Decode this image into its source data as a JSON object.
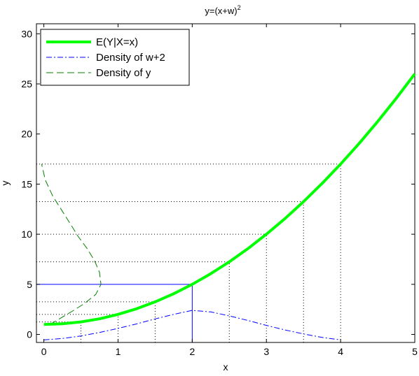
{
  "chart_data": {
    "type": "line",
    "title_base": "y=(x+w)",
    "title_exponent": "2",
    "xlabel": "x",
    "ylabel": "y",
    "xlim": [
      -0.1,
      5
    ],
    "ylim": [
      -0.8,
      31
    ],
    "xticks": [
      0,
      1,
      2,
      3,
      4,
      5
    ],
    "xtick_labels": [
      "0",
      "1",
      "2",
      "3",
      "4",
      "5"
    ],
    "yticks": [
      0,
      5,
      10,
      15,
      20,
      25,
      30
    ],
    "ytick_labels": [
      "0",
      "5",
      "10",
      "15",
      "20",
      "25",
      "30"
    ],
    "grid": false,
    "legend_position": "top-left",
    "series": [
      {
        "name": "E(Y|X=x)",
        "color": "#00ff00",
        "style": "solid",
        "x": [
          0,
          0.25,
          0.5,
          0.75,
          1,
          1.25,
          1.5,
          1.75,
          2,
          2.25,
          2.5,
          2.75,
          3,
          3.25,
          3.5,
          3.75,
          4,
          4.25,
          4.5,
          4.75,
          5
        ],
        "y": [
          1,
          1.06,
          1.25,
          1.56,
          2,
          2.56,
          3.25,
          4.06,
          5,
          6.06,
          7.25,
          8.56,
          10,
          11.56,
          13.25,
          15.06,
          17,
          19.06,
          21.25,
          23.56,
          26
        ]
      },
      {
        "name": "Density of w+2",
        "color": "#0000ff",
        "style": "dashdot",
        "x": [
          0,
          0.25,
          0.5,
          0.75,
          1,
          1.25,
          1.5,
          1.75,
          2,
          2.25,
          2.5,
          2.75,
          3,
          3.25,
          3.5,
          3.75,
          4
        ],
        "y": [
          -0.55,
          -0.4,
          -0.15,
          0.2,
          0.6,
          1.05,
          1.55,
          2.0,
          2.4,
          2.25,
          1.85,
          1.4,
          0.9,
          0.45,
          0.05,
          -0.3,
          -0.55
        ]
      },
      {
        "name": "Density of y",
        "color": "#008000",
        "style": "dashed",
        "x": [
          0.08,
          0.22,
          0.38,
          0.55,
          0.7,
          0.77,
          0.75,
          0.68,
          0.58,
          0.46,
          0.36,
          0.24,
          0.12,
          0.02,
          -0.03
        ],
        "y": [
          1,
          1.6,
          2.3,
          3.1,
          4.0,
          5.0,
          6.2,
          7.4,
          8.6,
          9.8,
          11.0,
          12.4,
          13.8,
          15.4,
          17
        ]
      }
    ],
    "reference_lines": [
      {
        "color": "#0000ff",
        "style": "solid",
        "x_mark": 2,
        "y_mark": 5
      },
      {
        "color": "#000000",
        "style": "dotted",
        "x_mark": 0.5,
        "y_mark": 1.25
      },
      {
        "color": "#000000",
        "style": "dotted",
        "x_mark": 1,
        "y_mark": 2
      },
      {
        "color": "#000000",
        "style": "dotted",
        "x_mark": 1.5,
        "y_mark": 3.25
      },
      {
        "color": "#000000",
        "style": "dotted",
        "x_mark": 2.5,
        "y_mark": 7.25
      },
      {
        "color": "#000000",
        "style": "dotted",
        "x_mark": 3,
        "y_mark": 10
      },
      {
        "color": "#000000",
        "style": "dotted",
        "x_mark": 3.5,
        "y_mark": 13.25
      },
      {
        "color": "#000000",
        "style": "dotted",
        "x_mark": 4,
        "y_mark": 17
      }
    ]
  }
}
